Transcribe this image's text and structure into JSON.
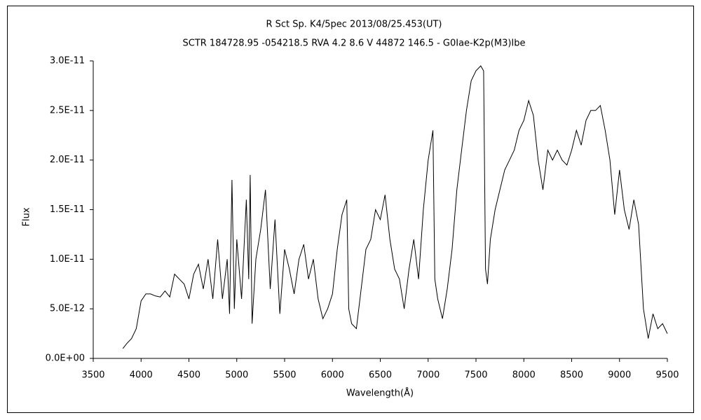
{
  "chart_data": {
    "type": "line",
    "title": "R Sct    Sp. K4/5pec    2013/08/25.453(UT)",
    "subtitle": "SCTR 184728.95 -054218.5 RVA 4.2 8.6 V 44872 146.5 - G0Iae-K2p(M3)Ibe",
    "x_label": "Wavelength(Å)",
    "y_label": "Flux",
    "xlim": [
      3500,
      9500
    ],
    "xticks": [
      3500,
      4000,
      4500,
      5000,
      5500,
      6000,
      6500,
      7000,
      7500,
      8000,
      8500,
      9000,
      9500
    ],
    "ylim": [
      0,
      3e-11
    ],
    "yticks": [
      {
        "value": 0,
        "label": "0.0E+00"
      },
      {
        "value": 5e-12,
        "label": "5.0E-12"
      },
      {
        "value": 1e-11,
        "label": "1.0E-11"
      },
      {
        "value": 1.5e-11,
        "label": "1.5E-11"
      },
      {
        "value": 2e-11,
        "label": "2.0E-11"
      },
      {
        "value": 2.5e-11,
        "label": "2.5E-11"
      },
      {
        "value": 3e-11,
        "label": "3.0E-11"
      }
    ],
    "series": [
      {
        "color": "#000000",
        "x": [
          3810,
          3850,
          3900,
          3950,
          4000,
          4050,
          4100,
          4150,
          4200,
          4250,
          4300,
          4350,
          4400,
          4450,
          4500,
          4550,
          4600,
          4650,
          4700,
          4750,
          4800,
          4850,
          4900,
          4925,
          4950,
          4975,
          5000,
          5050,
          5100,
          5125,
          5140,
          5160,
          5200,
          5250,
          5300,
          5350,
          5400,
          5450,
          5500,
          5550,
          5600,
          5650,
          5700,
          5750,
          5800,
          5850,
          5900,
          5950,
          6000,
          6050,
          6100,
          6150,
          6170,
          6200,
          6250,
          6300,
          6350,
          6400,
          6450,
          6500,
          6550,
          6600,
          6650,
          6700,
          6750,
          6800,
          6850,
          6900,
          6950,
          7000,
          7050,
          7070,
          7100,
          7150,
          7200,
          7250,
          7300,
          7350,
          7400,
          7450,
          7500,
          7550,
          7580,
          7600,
          7620,
          7650,
          7700,
          7750,
          7800,
          7850,
          7900,
          7950,
          8000,
          8050,
          8100,
          8150,
          8200,
          8250,
          8300,
          8350,
          8400,
          8450,
          8500,
          8550,
          8600,
          8650,
          8700,
          8750,
          8800,
          8850,
          8900,
          8950,
          9000,
          9050,
          9100,
          9150,
          9200,
          9250,
          9300,
          9350,
          9400,
          9450,
          9500
        ],
        "values": [
          1e-12,
          1.5e-12,
          2e-12,
          3e-12,
          5.8e-12,
          6.5e-12,
          6.5e-12,
          6.3e-12,
          6.2e-12,
          6.8e-12,
          6.2e-12,
          8.5e-12,
          8e-12,
          7.5e-12,
          6e-12,
          8.5e-12,
          9.5e-12,
          7e-12,
          1e-11,
          6e-12,
          1.2e-11,
          6e-12,
          1e-11,
          4.5e-12,
          1.8e-11,
          5e-12,
          1.2e-11,
          6e-12,
          1.6e-11,
          8e-12,
          1.85e-11,
          3.5e-12,
          1e-11,
          1.3e-11,
          1.7e-11,
          7e-12,
          1.4e-11,
          4.5e-12,
          1.1e-11,
          9e-12,
          6.5e-12,
          1e-11,
          1.15e-11,
          8e-12,
          1e-11,
          6e-12,
          4e-12,
          5e-12,
          6.5e-12,
          1.1e-11,
          1.45e-11,
          1.6e-11,
          5e-12,
          3.5e-12,
          3e-12,
          7e-12,
          1.1e-11,
          1.2e-11,
          1.5e-11,
          1.4e-11,
          1.65e-11,
          1.2e-11,
          9e-12,
          8e-12,
          5e-12,
          9e-12,
          1.2e-11,
          8e-12,
          1.5e-11,
          2e-11,
          2.3e-11,
          8e-12,
          6e-12,
          4e-12,
          7e-12,
          1.1e-11,
          1.7e-11,
          2.1e-11,
          2.5e-11,
          2.8e-11,
          2.9e-11,
          2.95e-11,
          2.9e-11,
          9e-12,
          7.5e-12,
          1.2e-11,
          1.5e-11,
          1.7e-11,
          1.9e-11,
          2e-11,
          2.1e-11,
          2.3e-11,
          2.4e-11,
          2.6e-11,
          2.45e-11,
          2e-11,
          1.7e-11,
          2.1e-11,
          2e-11,
          2.1e-11,
          2e-11,
          1.95e-11,
          2.1e-11,
          2.3e-11,
          2.15e-11,
          2.4e-11,
          2.5e-11,
          2.5e-11,
          2.55e-11,
          2.3e-11,
          2e-11,
          1.45e-11,
          1.9e-11,
          1.5e-11,
          1.3e-11,
          1.6e-11,
          1.35e-11,
          5e-12,
          2e-12,
          4.5e-12,
          3e-12,
          3.5e-12,
          2.5e-12
        ]
      }
    ]
  }
}
